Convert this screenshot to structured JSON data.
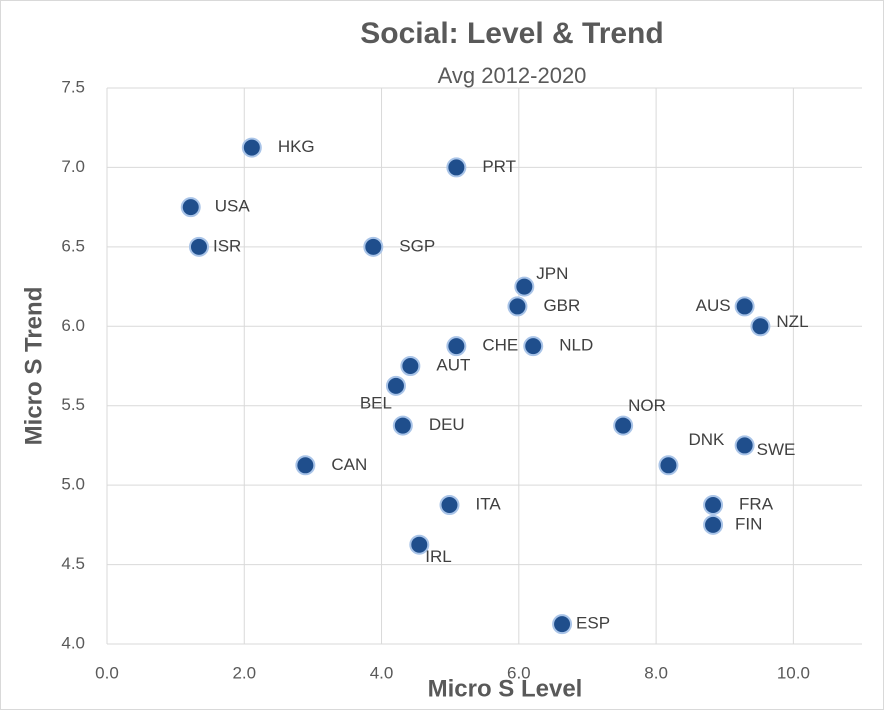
{
  "chart_data": {
    "type": "scatter",
    "title": "Social: Level & Trend",
    "subtitle": "Avg 2012-2020",
    "x_label": "Micro S Level",
    "y_label": "Micro S Trend",
    "color": "#1f4e8c",
    "grid": true,
    "xlim": [
      0,
      11
    ],
    "ylim": [
      4,
      7.5
    ],
    "xticks": [
      {
        "value": 0,
        "label": "0.0"
      },
      {
        "value": 2,
        "label": "2.0"
      },
      {
        "value": 4,
        "label": "4.0"
      },
      {
        "value": 6,
        "label": "6.0"
      },
      {
        "value": 8,
        "label": "8.0"
      },
      {
        "value": 10,
        "label": "10.0"
      }
    ],
    "yticks": [
      {
        "value": 4,
        "label": "4.0"
      },
      {
        "value": 4.5,
        "label": "4.5"
      },
      {
        "value": 5,
        "label": "5.0"
      },
      {
        "value": 5.5,
        "label": "5.5"
      },
      {
        "value": 6,
        "label": "6.0"
      },
      {
        "value": 6.5,
        "label": "6.5"
      },
      {
        "value": 7,
        "label": "7.0"
      },
      {
        "value": 7.5,
        "label": "7.5"
      }
    ],
    "labels": [
      "HKG",
      "PRT",
      "USA",
      "ISR",
      "SGP",
      "JPN",
      "GBR",
      "AUS",
      "NZL",
      "CHE",
      "NLD",
      "AUT",
      "BEL",
      "DEU",
      "NOR",
      "SWE",
      "DNK",
      "CAN",
      "ITA",
      "FRA",
      "FIN",
      "IRL",
      "ESP"
    ],
    "x": [
      2.11,
      5.09,
      1.22,
      1.34,
      3.88,
      6.08,
      5.98,
      9.29,
      9.52,
      5.09,
      6.21,
      4.42,
      4.21,
      4.31,
      7.52,
      9.29,
      8.18,
      2.89,
      4.99,
      8.83,
      8.83,
      4.55,
      6.63
    ],
    "y": [
      7.125,
      7.0,
      6.75,
      6.5,
      6.5,
      6.25,
      6.125,
      6.125,
      6.0,
      5.875,
      5.875,
      5.75,
      5.625,
      5.375,
      5.375,
      5.25,
      5.125,
      5.125,
      4.875,
      4.875,
      4.75,
      4.625,
      4.125
    ]
  }
}
